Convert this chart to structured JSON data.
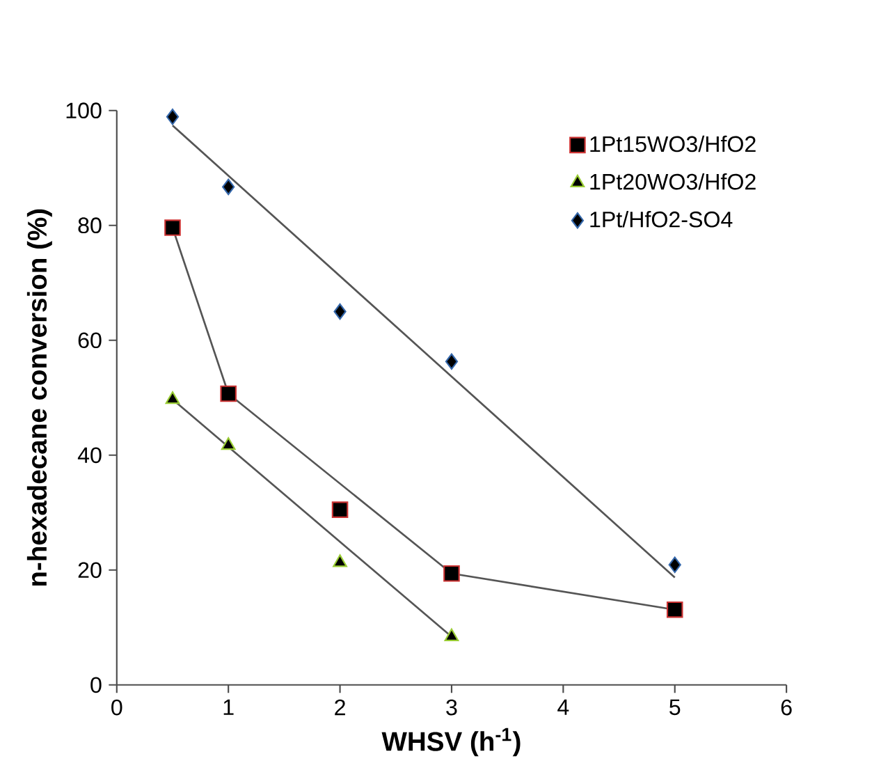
{
  "chart_data": {
    "type": "scatter",
    "xlabel": "WHSV (h$^{-1}$)",
    "ylabel": "n-hexadecane conversion (%)",
    "xlim": [
      0,
      6
    ],
    "xticks": [
      0,
      1,
      2,
      3,
      4,
      5,
      6
    ],
    "ylim": [
      0,
      100
    ],
    "yticks": [
      0,
      20,
      40,
      60,
      80,
      100
    ],
    "grid": false,
    "legend": "top right",
    "series": [
      {
        "type": "line",
        "color": "#555555",
        "marker": "none",
        "x": [
          0.5,
          1,
          3,
          5
        ],
        "values": [
          79.6,
          50.7,
          19.4,
          13.1
        ]
      },
      {
        "type": "line",
        "color": "#555555",
        "marker": "none",
        "x": [
          0.5,
          3
        ],
        "values": [
          49.7,
          8.4
        ]
      },
      {
        "type": "line",
        "color": "#555555",
        "marker": "none",
        "x": [
          0.5,
          5
        ],
        "values": [
          97.4,
          18.7
        ]
      },
      {
        "name": "1Pt15WO3/HfO2",
        "color": "#cc3333",
        "marker": "square",
        "x": [
          0.5,
          1,
          2,
          3,
          5
        ],
        "values": [
          79.6,
          50.7,
          30.5,
          19.4,
          13.1
        ]
      },
      {
        "name": "1Pt20WO3/HfO2",
        "color": "#99cc33",
        "marker": "triangle",
        "x": [
          0.5,
          1,
          2,
          3
        ],
        "values": [
          49.7,
          41.7,
          21.3,
          8.4
        ]
      },
      {
        "name": "1Pt/HfO2-SO4",
        "color": "#3366aa",
        "marker": "diamond",
        "x": [
          0.5,
          1,
          2,
          3,
          5
        ],
        "values": [
          98.9,
          86.7,
          65,
          56.3,
          20.9
        ]
      }
    ]
  }
}
